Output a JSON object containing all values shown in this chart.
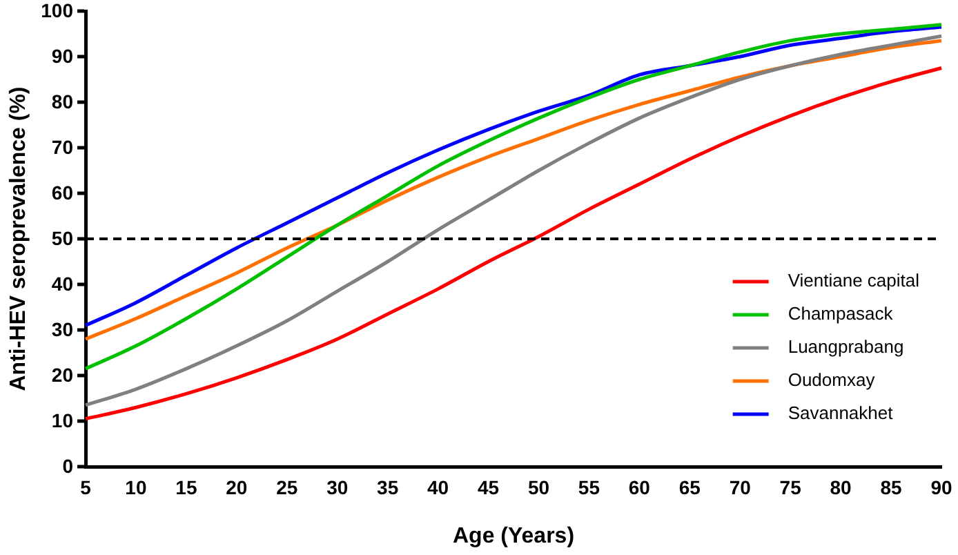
{
  "chart_data": {
    "type": "line",
    "xlabel": "Age (Years)",
    "ylabel": "Anti-HEV seroprevalence (%)",
    "x": [
      5,
      10,
      15,
      20,
      25,
      30,
      35,
      40,
      45,
      50,
      55,
      60,
      65,
      70,
      75,
      80,
      85,
      90
    ],
    "series": [
      {
        "name": "Vientiane capital",
        "color": "#ff0000",
        "values": [
          10.5,
          13,
          16,
          19.5,
          23.5,
          28,
          33.5,
          39,
          45,
          50.5,
          56.5,
          62,
          67.5,
          72.5,
          77,
          81,
          84.5,
          87.5
        ]
      },
      {
        "name": "Champasack",
        "color": "#00c000",
        "values": [
          21.5,
          26.5,
          32.5,
          39,
          46,
          53,
          59.5,
          66,
          71.5,
          76.5,
          81,
          85,
          88,
          91,
          93.5,
          95,
          96,
          97
        ]
      },
      {
        "name": "Luangprabang",
        "color": "#808080",
        "values": [
          13.5,
          17,
          21.5,
          26.5,
          32,
          38.5,
          45,
          52,
          58.5,
          65,
          71,
          76.5,
          81,
          85,
          88,
          90.5,
          92.5,
          94.5
        ]
      },
      {
        "name": "Oudomxay",
        "color": "#ff7000",
        "values": [
          28,
          32.5,
          37.5,
          42.5,
          48,
          53,
          58.5,
          63.5,
          68,
          72,
          76,
          79.5,
          82.5,
          85.5,
          88,
          90,
          92,
          93.5
        ]
      },
      {
        "name": "Savannakhet",
        "color": "#0000ff",
        "values": [
          31,
          36,
          42,
          48,
          53.5,
          59,
          64.5,
          69.5,
          74,
          78,
          81.5,
          86,
          88,
          90,
          92.5,
          94,
          95.5,
          96.5
        ]
      }
    ],
    "xlim": [
      5,
      90
    ],
    "xticks": [
      5,
      10,
      15,
      20,
      25,
      30,
      35,
      40,
      45,
      50,
      55,
      60,
      65,
      70,
      75,
      80,
      85,
      90
    ],
    "ylim": [
      0,
      100
    ],
    "yticks": [
      0,
      10,
      20,
      30,
      40,
      50,
      60,
      70,
      80,
      90,
      100
    ],
    "ref_lines": [
      {
        "axis": "y",
        "value": 50,
        "color": "#000000",
        "line_style": "dashed"
      }
    ],
    "grid": false,
    "legend": "bottom right",
    "marker": "none",
    "line_style": "solid"
  }
}
